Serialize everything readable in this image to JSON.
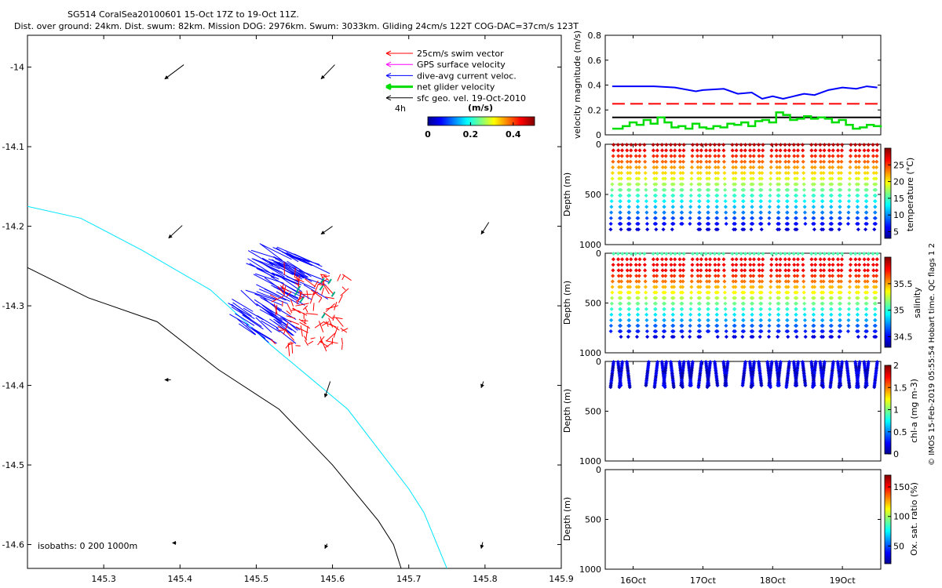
{
  "header": {
    "title_line1": "SG514 CoralSea20100601 15-Oct 17Z to 19-Oct 11Z.",
    "title_line2": "Dist. over ground: 24km. Dist. swum: 82km. Mission DOG: 2976km. Swum: 3033km. Gliding 24cm/s 122T COG-DAC=37cm/s 123T"
  },
  "map": {
    "xlim": [
      145.2,
      145.9
    ],
    "ylim": [
      -14.63,
      -13.96
    ],
    "x_ticks": [
      "145.3",
      "145.4",
      "145.5",
      "145.6",
      "145.7",
      "145.8",
      "145.9"
    ],
    "x_tick_values": [
      145.3,
      145.4,
      145.5,
      145.6,
      145.7,
      145.8,
      145.9
    ],
    "y_ticks": [
      "-14",
      "-14.1",
      "-14.2",
      "-14.3",
      "-14.4",
      "-14.5",
      "-14.6"
    ],
    "y_tick_values": [
      -14.0,
      -14.1,
      -14.2,
      -14.3,
      -14.4,
      -14.5,
      -14.6
    ],
    "legend": [
      {
        "label": "25cm/s swim vector",
        "color": "#ff0000"
      },
      {
        "label": "GPS surface velocity",
        "color": "#ff00ff"
      },
      {
        "label": "dive-avg current veloc.",
        "color": "#0000ff"
      },
      {
        "label": "net glider velocity",
        "color": "#00dd00"
      },
      {
        "label": "sfc geo. vel. 19-Oct-2010",
        "color": "#000000"
      }
    ],
    "legend_extra": "4h",
    "colorbar": {
      "title": "(m/s)",
      "ticks": [
        "0",
        "0.2",
        "0.4"
      ],
      "tick_values": [
        0,
        0.2,
        0.4
      ],
      "range": [
        0,
        0.5
      ]
    },
    "isobath_label": "isobaths: 0   200  1000m",
    "isobath_200m": [
      [
        145.2,
        -14.175
      ],
      [
        145.27,
        -14.19
      ],
      [
        145.35,
        -14.23
      ],
      [
        145.44,
        -14.28
      ],
      [
        145.52,
        -14.35
      ],
      [
        145.62,
        -14.43
      ],
      [
        145.7,
        -14.53
      ],
      [
        145.72,
        -14.56
      ],
      [
        145.75,
        -14.63
      ]
    ],
    "isobath_1000m": [
      [
        145.2,
        -14.252
      ],
      [
        145.28,
        -14.29
      ],
      [
        145.37,
        -14.32
      ],
      [
        145.45,
        -14.38
      ],
      [
        145.53,
        -14.43
      ],
      [
        145.6,
        -14.5
      ],
      [
        145.66,
        -14.57
      ],
      [
        145.68,
        -14.6
      ],
      [
        145.69,
        -14.63
      ]
    ],
    "geo_vectors": [
      {
        "lon": 145.38,
        "lat": -14.015,
        "dx": 0.025,
        "dy": 0.018
      },
      {
        "lon": 145.585,
        "lat": -14.015,
        "dx": 0.018,
        "dy": 0.018
      },
      {
        "lon": 145.385,
        "lat": -14.215,
        "dx": 0.018,
        "dy": 0.016
      },
      {
        "lon": 145.585,
        "lat": -14.21,
        "dx": 0.015,
        "dy": 0.01
      },
      {
        "lon": 145.795,
        "lat": -14.21,
        "dx": 0.01,
        "dy": 0.015
      },
      {
        "lon": 145.38,
        "lat": -14.393,
        "dx": 0.008,
        "dy": 0.0
      },
      {
        "lon": 145.59,
        "lat": -14.415,
        "dx": 0.007,
        "dy": 0.02
      },
      {
        "lon": 145.795,
        "lat": -14.403,
        "dx": 0.003,
        "dy": 0.008
      },
      {
        "lon": 145.39,
        "lat": -14.598,
        "dx": 0.005,
        "dy": 0.0
      },
      {
        "lon": 145.59,
        "lat": -14.605,
        "dx": 0.003,
        "dy": 0.006
      },
      {
        "lon": 145.795,
        "lat": -14.605,
        "dx": 0.002,
        "dy": 0.008
      }
    ]
  },
  "chart_data": [
    {
      "type": "line",
      "title": "",
      "ylabel": "velocity magnitude (m/s)",
      "ylim": [
        0,
        0.8
      ],
      "y_ticks": [
        "0",
        "0.2",
        "0.4",
        "0.6",
        "0.8"
      ],
      "y_tick_values": [
        0,
        0.2,
        0.4,
        0.6,
        0.8
      ],
      "xlim_days": [
        15.6,
        19.55
      ],
      "series": [
        {
          "color": "#0000ff",
          "style": "solid",
          "x": [
            15.7,
            16.0,
            16.3,
            16.6,
            16.9,
            17.0,
            17.3,
            17.5,
            17.7,
            17.85,
            18.0,
            18.15,
            18.3,
            18.45,
            18.6,
            18.8,
            19.0,
            19.2,
            19.35,
            19.5
          ],
          "y": [
            0.39,
            0.39,
            0.39,
            0.38,
            0.35,
            0.36,
            0.37,
            0.33,
            0.34,
            0.29,
            0.31,
            0.29,
            0.31,
            0.33,
            0.32,
            0.36,
            0.38,
            0.37,
            0.39,
            0.38
          ]
        },
        {
          "color": "#ff0000",
          "style": "dashed",
          "x": [
            15.7,
            19.55
          ],
          "y": [
            0.25,
            0.25
          ]
        },
        {
          "color": "#000000",
          "style": "solid",
          "x": [
            15.7,
            19.55
          ],
          "y": [
            0.14,
            0.14
          ]
        },
        {
          "color": "#00dd00",
          "style": "steps",
          "x": [
            15.7,
            15.85,
            15.95,
            16.05,
            16.15,
            16.25,
            16.35,
            16.45,
            16.55,
            16.65,
            16.75,
            16.85,
            16.95,
            17.05,
            17.15,
            17.25,
            17.35,
            17.45,
            17.55,
            17.65,
            17.75,
            17.85,
            17.95,
            18.05,
            18.15,
            18.25,
            18.35,
            18.45,
            18.55,
            18.65,
            18.75,
            18.85,
            18.95,
            19.05,
            19.15,
            19.25,
            19.35,
            19.45,
            19.55
          ],
          "y": [
            0.05,
            0.07,
            0.1,
            0.08,
            0.12,
            0.09,
            0.14,
            0.1,
            0.06,
            0.07,
            0.05,
            0.09,
            0.06,
            0.05,
            0.07,
            0.06,
            0.09,
            0.08,
            0.1,
            0.07,
            0.11,
            0.12,
            0.1,
            0.18,
            0.16,
            0.12,
            0.13,
            0.15,
            0.13,
            0.14,
            0.13,
            0.1,
            0.12,
            0.08,
            0.05,
            0.06,
            0.08,
            0.07,
            0.06
          ]
        }
      ]
    },
    {
      "type": "scatter",
      "variable": "temperature",
      "ylabel": "Depth (m)",
      "ylim": [
        1000,
        0
      ],
      "y_ticks": [
        "0",
        "500",
        "1000"
      ],
      "y_tick_values": [
        0,
        500,
        1000
      ],
      "colorbar_label": "temperature (°C)",
      "colorbar_range": [
        3,
        30
      ],
      "colorbar_ticks": [
        "5",
        "10",
        "15",
        "20",
        "25"
      ],
      "colorbar_tick_values": [
        5,
        10,
        15,
        20,
        25
      ],
      "max_depth": 900
    },
    {
      "type": "scatter",
      "variable": "salinity",
      "ylabel": "Depth (m)",
      "ylim": [
        1000,
        0
      ],
      "y_ticks": [
        "0",
        "500",
        "1000"
      ],
      "y_tick_values": [
        0,
        500,
        1000
      ],
      "colorbar_label": "salinity",
      "colorbar_range": [
        34.3,
        36.0
      ],
      "colorbar_ticks": [
        "34.5",
        "35",
        "35.5"
      ],
      "colorbar_tick_values": [
        34.5,
        35.0,
        35.5
      ],
      "max_depth": 890
    },
    {
      "type": "scatter",
      "variable": "chl-a",
      "ylabel": "Depth (m)",
      "ylim": [
        1000,
        0
      ],
      "y_ticks": [
        "0",
        "500",
        "1000"
      ],
      "y_tick_values": [
        0,
        500,
        1000
      ],
      "colorbar_label": "chl-a (mg m-3)",
      "colorbar_range": [
        0,
        2
      ],
      "colorbar_ticks": [
        "0",
        "0.5",
        "1",
        "1.5",
        "2"
      ],
      "colorbar_tick_values": [
        0,
        0.5,
        1,
        1.5,
        2
      ],
      "max_depth": 270
    },
    {
      "type": "scatter",
      "variable": "oxygen",
      "ylabel": "Depth (m)",
      "ylim": [
        1000,
        0
      ],
      "y_ticks": [
        "0",
        "500",
        "1000"
      ],
      "y_tick_values": [
        0,
        500,
        1000
      ],
      "colorbar_label": "Ox. sat. ratio (%)",
      "colorbar_range": [
        20,
        170
      ],
      "colorbar_ticks": [
        "50",
        "100",
        "150"
      ],
      "colorbar_tick_values": [
        50,
        100,
        150
      ],
      "x_ticks": [
        "16Oct",
        "17Oct",
        "18Oct",
        "19Oct"
      ],
      "x_tick_values": [
        16,
        17,
        18,
        19
      ]
    }
  ],
  "footer": {
    "credit": "© IMOS 15-Feb-2019 05:55:54 Hobart time. QC flags 1  2"
  }
}
